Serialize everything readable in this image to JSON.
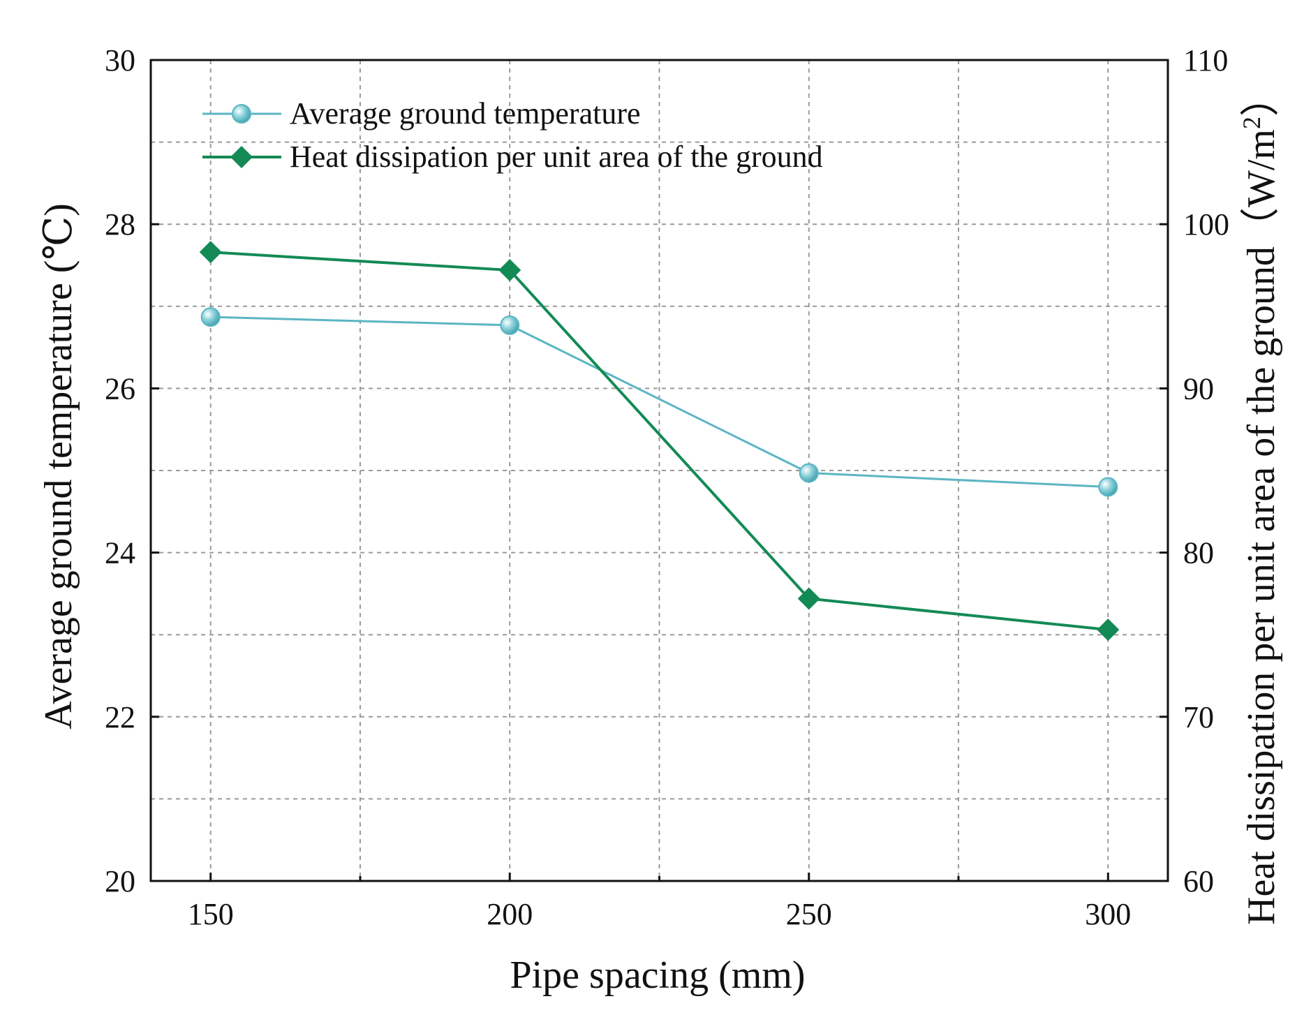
{
  "chart_data": {
    "type": "line",
    "title": "",
    "xlabel": "Pipe spacing (mm)",
    "ylabel": "Average ground temperature (℃)",
    "y2label_main": "Heat dissipation per unit area of the ground（W/m",
    "y2label_sup": "2",
    "y2label_close": "）",
    "x": [
      150,
      200,
      250,
      300
    ],
    "x_ticks": [
      "150",
      "200",
      "250",
      "300"
    ],
    "xlim": [
      140,
      310
    ],
    "ylim": [
      20,
      30
    ],
    "y_ticks": [
      "20",
      "22",
      "24",
      "26",
      "28",
      "30"
    ],
    "y2lim": [
      60,
      110
    ],
    "y2_ticks": [
      "60",
      "70",
      "80",
      "90",
      "100",
      "110"
    ],
    "grid": true,
    "legend_position": "top-left",
    "series": [
      {
        "name": "Average ground temperature",
        "axis": "left",
        "marker": "circle",
        "color": "#5bb5c3",
        "values": [
          26.87,
          26.77,
          24.97,
          24.8
        ]
      },
      {
        "name": "Heat dissipation per unit area of the ground",
        "axis": "right",
        "marker": "diamond",
        "color": "#138a55",
        "values": [
          98.3,
          97.2,
          77.2,
          75.3
        ]
      }
    ]
  }
}
